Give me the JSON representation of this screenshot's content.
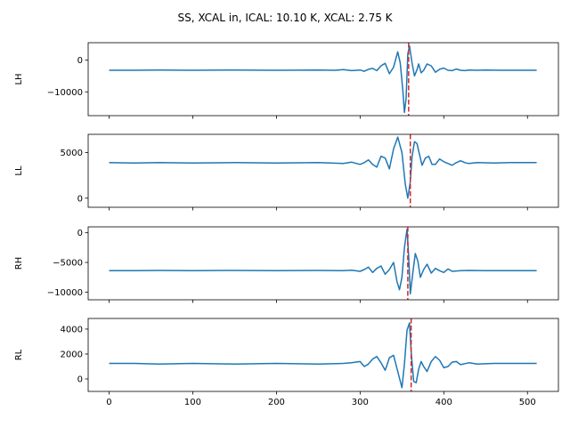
{
  "figure": {
    "title": "SS, XCAL in, ICAL: 10.10 K, XCAL: 2.75 K"
  },
  "colors": {
    "line": "#1f77b4",
    "peak_marker": "#d62728"
  },
  "chart_data": [
    {
      "type": "line",
      "name": "LH",
      "ylabel": "LH",
      "xlim": [
        -25,
        537
      ],
      "ylim": [
        -17500,
        5500
      ],
      "yticks": [
        0,
        -10000
      ],
      "xticks": [
        0,
        100,
        200,
        300,
        400,
        500
      ],
      "show_x_tick_labels": false,
      "baseline": -3200,
      "peak_x": 358,
      "grid": false,
      "series": [
        {
          "x": [
            0,
            30,
            60,
            100,
            150,
            200,
            250,
            270,
            280,
            290,
            300,
            305,
            310,
            315,
            320,
            325,
            330,
            335,
            340,
            345,
            348,
            351,
            353,
            355,
            357,
            359,
            362,
            365,
            368,
            370,
            373,
            376,
            380,
            385,
            390,
            395,
            400,
            405,
            410,
            415,
            420,
            425,
            430,
            440,
            450,
            470,
            500,
            511
          ],
          "y": [
            -3200,
            -3200,
            -3100,
            -3200,
            -3100,
            -3200,
            -3100,
            -3200,
            -3000,
            -3300,
            -3100,
            -3500,
            -2900,
            -2600,
            -3300,
            -1800,
            -1000,
            -4300,
            -2200,
            2600,
            -900,
            -9600,
            -16500,
            -12000,
            2000,
            4500,
            -800,
            -5000,
            -3000,
            -1200,
            -4000,
            -3200,
            -1200,
            -1800,
            -3800,
            -2900,
            -2500,
            -3200,
            -3300,
            -2800,
            -3200,
            -3300,
            -3100,
            -3200,
            -3100,
            -3200,
            -3200,
            -3200
          ]
        }
      ]
    },
    {
      "type": "line",
      "name": "LL",
      "ylabel": "LL",
      "xlim": [
        -25,
        537
      ],
      "ylim": [
        -1000,
        7000
      ],
      "yticks": [
        5000,
        0
      ],
      "xticks": [
        0,
        100,
        200,
        300,
        400,
        500
      ],
      "show_x_tick_labels": false,
      "baseline": 3900,
      "peak_x": 360,
      "grid": false,
      "series": [
        {
          "x": [
            0,
            30,
            60,
            100,
            150,
            200,
            250,
            280,
            290,
            300,
            305,
            310,
            315,
            320,
            325,
            330,
            335,
            340,
            345,
            350,
            354,
            357,
            360,
            362,
            365,
            368,
            371,
            374,
            378,
            382,
            386,
            390,
            395,
            400,
            405,
            410,
            415,
            420,
            425,
            430,
            440,
            460,
            480,
            511
          ],
          "y": [
            3900,
            3850,
            3900,
            3850,
            3900,
            3850,
            3900,
            3800,
            3950,
            3700,
            3900,
            4200,
            3700,
            3400,
            4600,
            4400,
            3200,
            5400,
            6700,
            5000,
            1500,
            0,
            1800,
            4500,
            6200,
            6000,
            4800,
            3600,
            4400,
            4600,
            3700,
            3700,
            4300,
            4000,
            3800,
            3600,
            3900,
            4100,
            3900,
            3800,
            3900,
            3850,
            3900,
            3900
          ]
        }
      ]
    },
    {
      "type": "line",
      "name": "RH",
      "ylabel": "RH",
      "xlim": [
        -25,
        537
      ],
      "ylim": [
        -11300,
        1000
      ],
      "yticks": [
        0,
        -5000,
        -10000
      ],
      "xticks": [
        0,
        100,
        200,
        300,
        400,
        500
      ],
      "show_x_tick_labels": false,
      "baseline": -6400,
      "peak_x": 357,
      "grid": false,
      "series": [
        {
          "x": [
            0,
            30,
            60,
            100,
            150,
            200,
            250,
            280,
            290,
            300,
            305,
            310,
            315,
            320,
            325,
            330,
            335,
            340,
            344,
            347,
            350,
            353,
            356,
            358,
            360,
            363,
            366,
            369,
            372,
            376,
            380,
            385,
            390,
            395,
            400,
            405,
            410,
            420,
            430,
            450,
            480,
            511
          ],
          "y": [
            -6400,
            -6400,
            -6350,
            -6400,
            -6350,
            -6400,
            -6350,
            -6400,
            -6300,
            -6500,
            -6200,
            -5800,
            -6700,
            -6000,
            -5600,
            -7000,
            -6200,
            -5000,
            -8200,
            -9600,
            -7500,
            -2500,
            600,
            -3800,
            -10300,
            -6800,
            -3500,
            -4800,
            -7500,
            -6200,
            -5300,
            -6800,
            -6000,
            -6400,
            -6700,
            -6100,
            -6500,
            -6400,
            -6350,
            -6400,
            -6400,
            -6400
          ]
        }
      ]
    },
    {
      "type": "line",
      "name": "RL",
      "ylabel": "RL",
      "xlim": [
        -25,
        537
      ],
      "ylim": [
        -1000,
        4850
      ],
      "yticks": [
        4000,
        2000,
        0
      ],
      "xticks": [
        0,
        100,
        200,
        300,
        400,
        500
      ],
      "show_x_tick_labels": true,
      "baseline": 1250,
      "peak_x": 361,
      "grid": false,
      "series": [
        {
          "x": [
            0,
            30,
            60,
            100,
            150,
            200,
            250,
            280,
            290,
            300,
            305,
            310,
            315,
            320,
            325,
            330,
            335,
            340,
            345,
            350,
            353,
            356,
            359,
            361,
            364,
            367,
            370,
            373,
            376,
            380,
            385,
            390,
            395,
            400,
            405,
            410,
            415,
            420,
            430,
            440,
            460,
            480,
            511
          ],
          "y": [
            1250,
            1250,
            1200,
            1250,
            1200,
            1250,
            1200,
            1250,
            1300,
            1400,
            1000,
            1200,
            1600,
            1800,
            1300,
            700,
            1700,
            1900,
            600,
            -700,
            1200,
            3900,
            4500,
            2200,
            -200,
            -300,
            800,
            1400,
            1000,
            600,
            1400,
            1800,
            1500,
            900,
            1000,
            1350,
            1400,
            1150,
            1300,
            1200,
            1250,
            1250,
            1250
          ]
        }
      ]
    }
  ]
}
